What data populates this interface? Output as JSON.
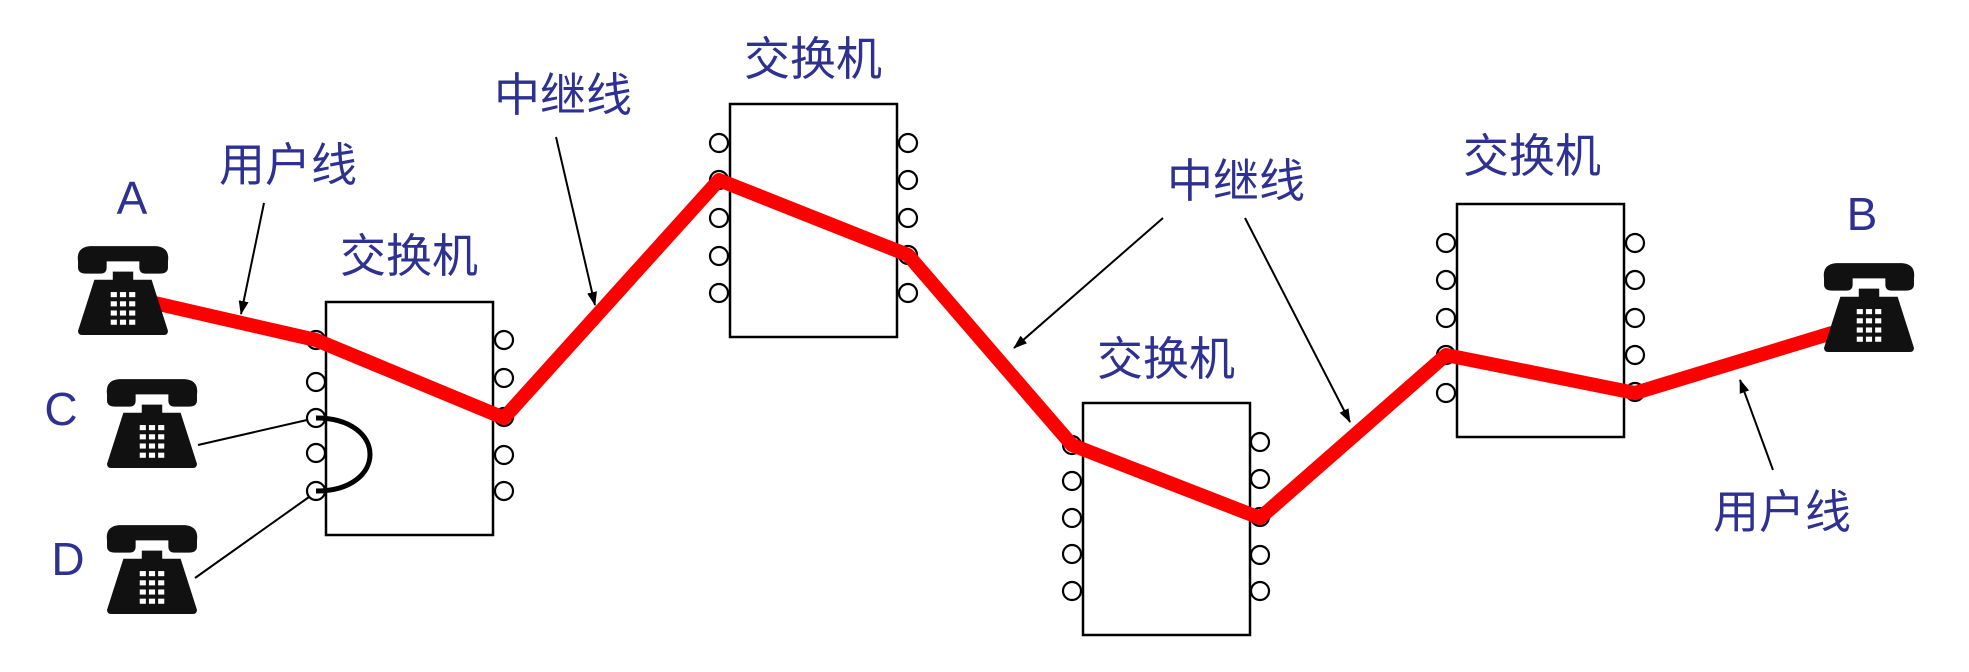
{
  "colors": {
    "label": "#2e3192",
    "path": "#ff0000",
    "ink": "#000000",
    "phone": "#111111"
  },
  "telephones": [
    {
      "id": "A",
      "label": "A",
      "icon": "telephone-icon"
    },
    {
      "id": "B",
      "label": "B",
      "icon": "telephone-icon"
    },
    {
      "id": "C",
      "label": "C",
      "icon": "telephone-icon"
    },
    {
      "id": "D",
      "label": "D",
      "icon": "telephone-icon"
    }
  ],
  "switches": [
    {
      "label": "交换机"
    },
    {
      "label": "交换机"
    },
    {
      "label": "交换机"
    },
    {
      "label": "交换机"
    }
  ],
  "line_labels": {
    "user_line_left": "用户线",
    "trunk_left": "中继线",
    "trunk_right": "中继线",
    "user_line_right": "用户线"
  }
}
